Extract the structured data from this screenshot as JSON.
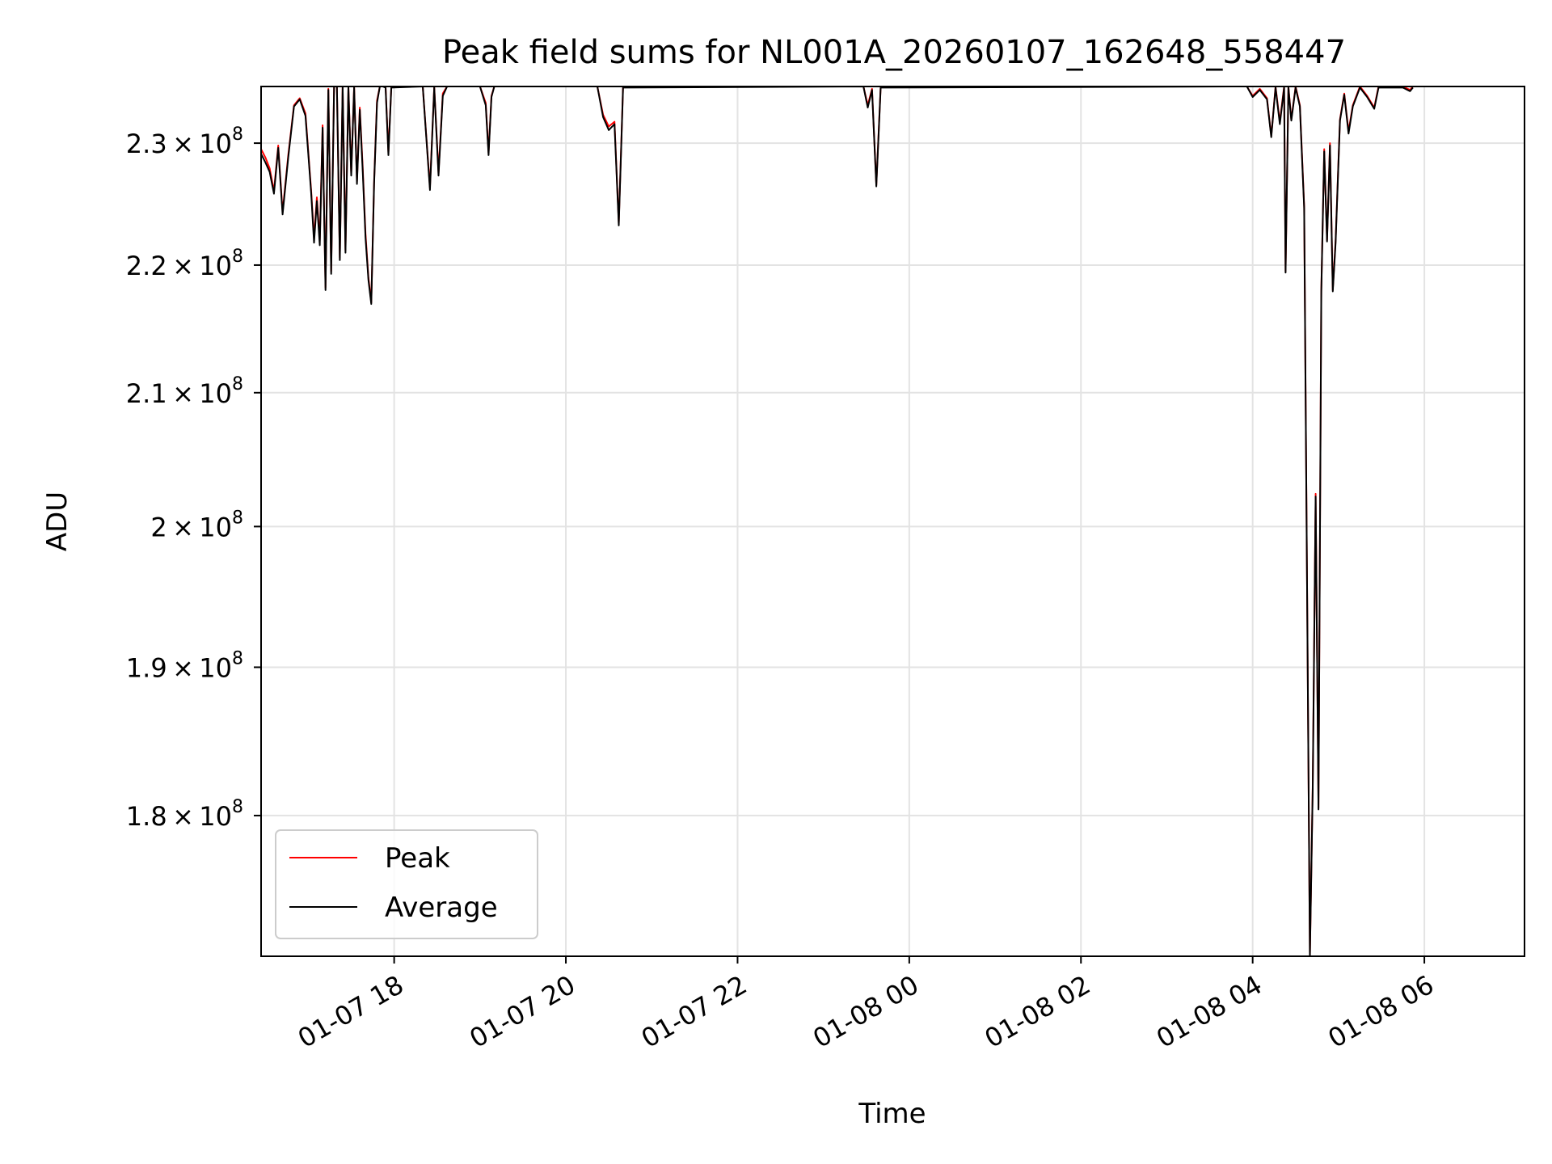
{
  "chart_data": {
    "type": "line",
    "title": "Peak field sums for NL001A_20260107_162648_558447",
    "xlabel": "Time",
    "ylabel": "ADU",
    "y_scale": "log",
    "xlim": [
      "2026-01-07 16:27",
      "2026-01-08 07:10"
    ],
    "ylim": [
      171000000,
      234800000
    ],
    "grid": true,
    "legend_position": "lower-left",
    "x_ticks": [
      {
        "t": "2026-01-07 18:00",
        "label": "01-07 18"
      },
      {
        "t": "2026-01-07 20:00",
        "label": "01-07 20"
      },
      {
        "t": "2026-01-07 22:00",
        "label": "01-07 22"
      },
      {
        "t": "2026-01-08 00:00",
        "label": "01-08 00"
      },
      {
        "t": "2026-01-08 02:00",
        "label": "01-08 02"
      },
      {
        "t": "2026-01-08 04:00",
        "label": "01-08 04"
      },
      {
        "t": "2026-01-08 06:00",
        "label": "01-08 06"
      }
    ],
    "y_ticks": [
      {
        "value": 180000000,
        "mantissa": "1.8",
        "exp": "8"
      },
      {
        "value": 190000000,
        "mantissa": "1.9",
        "exp": "8"
      },
      {
        "value": 200000000,
        "mantissa": "2",
        "exp": "8"
      },
      {
        "value": 210000000,
        "mantissa": "2.1",
        "exp": "8"
      },
      {
        "value": 220000000,
        "mantissa": "2.2",
        "exp": "8"
      },
      {
        "value": 230000000,
        "mantissa": "2.3",
        "exp": "8"
      }
    ],
    "series": [
      {
        "name": "Peak",
        "color": "#ff0000",
        "points": [
          [
            "2026-01-07 16:27",
            229500000
          ],
          [
            "2026-01-07 16:30",
            228800000
          ],
          [
            "2026-01-07 16:33",
            227900000
          ],
          [
            "2026-01-07 16:36",
            226000000
          ],
          [
            "2026-01-07 16:39",
            229800000
          ],
          [
            "2026-01-07 16:42",
            224300000
          ],
          [
            "2026-01-07 16:46",
            229000000
          ],
          [
            "2026-01-07 16:50",
            233200000
          ],
          [
            "2026-01-07 16:54",
            233800000
          ],
          [
            "2026-01-07 16:58",
            232500000
          ],
          [
            "2026-01-07 17:02",
            226000000
          ],
          [
            "2026-01-07 17:04",
            222200000
          ],
          [
            "2026-01-07 17:06",
            225500000
          ],
          [
            "2026-01-07 17:08",
            222000000
          ],
          [
            "2026-01-07 17:10",
            231500000
          ],
          [
            "2026-01-07 17:12",
            218200000
          ],
          [
            "2026-01-07 17:14",
            234600000
          ],
          [
            "2026-01-07 17:16",
            219500000
          ],
          [
            "2026-01-07 17:18",
            234800000
          ],
          [
            "2026-01-07 17:20",
            234800000
          ],
          [
            "2026-01-07 17:22",
            220600000
          ],
          [
            "2026-01-07 17:24",
            234800000
          ],
          [
            "2026-01-07 17:26",
            221200000
          ],
          [
            "2026-01-07 17:28",
            234800000
          ],
          [
            "2026-01-07 17:30",
            227500000
          ],
          [
            "2026-01-07 17:32",
            234800000
          ],
          [
            "2026-01-07 17:34",
            226800000
          ],
          [
            "2026-01-07 17:36",
            233000000
          ],
          [
            "2026-01-07 17:38",
            228000000
          ],
          [
            "2026-01-07 17:40",
            222500000
          ],
          [
            "2026-01-07 17:42",
            219000000
          ],
          [
            "2026-01-07 17:44",
            217000000
          ],
          [
            "2026-01-07 17:46",
            226800000
          ],
          [
            "2026-01-07 17:48",
            233600000
          ],
          [
            "2026-01-07 17:50",
            234800000
          ],
          [
            "2026-01-07 17:52",
            234800000
          ],
          [
            "2026-01-07 17:54",
            234800000
          ],
          [
            "2026-01-07 17:56",
            229200000
          ],
          [
            "2026-01-07 17:58",
            234800000
          ],
          [
            "2026-01-07 18:20",
            234800000
          ],
          [
            "2026-01-07 18:25",
            226300000
          ],
          [
            "2026-01-07 18:28",
            234800000
          ],
          [
            "2026-01-07 18:31",
            227500000
          ],
          [
            "2026-01-07 18:34",
            234200000
          ],
          [
            "2026-01-07 18:37",
            234800000
          ],
          [
            "2026-01-07 19:00",
            234800000
          ],
          [
            "2026-01-07 19:04",
            233400000
          ],
          [
            "2026-01-07 19:06",
            229200000
          ],
          [
            "2026-01-07 19:08",
            234000000
          ],
          [
            "2026-01-07 19:10",
            234800000
          ],
          [
            "2026-01-07 20:22",
            234800000
          ],
          [
            "2026-01-07 20:26",
            232400000
          ],
          [
            "2026-01-07 20:30",
            231400000
          ],
          [
            "2026-01-07 20:34",
            231800000
          ],
          [
            "2026-01-07 20:37",
            223400000
          ],
          [
            "2026-01-07 20:40",
            234800000
          ],
          [
            "2026-01-07 23:28",
            234800000
          ],
          [
            "2026-01-07 23:31",
            233200000
          ],
          [
            "2026-01-07 23:34",
            234600000
          ],
          [
            "2026-01-07 23:37",
            226500000
          ],
          [
            "2026-01-07 23:40",
            234800000
          ],
          [
            "2026-01-08 03:56",
            234800000
          ],
          [
            "2026-01-08 04:00",
            234000000
          ],
          [
            "2026-01-08 04:05",
            234600000
          ],
          [
            "2026-01-08 04:10",
            233800000
          ],
          [
            "2026-01-08 04:13",
            230600000
          ],
          [
            "2026-01-08 04:16",
            234800000
          ],
          [
            "2026-01-08 04:19",
            231800000
          ],
          [
            "2026-01-08 04:22",
            234800000
          ],
          [
            "2026-01-08 04:23",
            219500000
          ],
          [
            "2026-01-08 04:25",
            234800000
          ],
          [
            "2026-01-08 04:27",
            232000000
          ],
          [
            "2026-01-08 04:30",
            234800000
          ],
          [
            "2026-01-08 04:33",
            233200000
          ],
          [
            "2026-01-08 04:36",
            224800000
          ],
          [
            "2026-01-08 04:40",
            171000000
          ],
          [
            "2026-01-08 04:42",
            182000000
          ],
          [
            "2026-01-08 04:44",
            202400000
          ],
          [
            "2026-01-08 04:46",
            180500000
          ],
          [
            "2026-01-08 04:48",
            218000000
          ],
          [
            "2026-01-08 04:50",
            229500000
          ],
          [
            "2026-01-08 04:52",
            222000000
          ],
          [
            "2026-01-08 04:54",
            230000000
          ],
          [
            "2026-01-08 04:56",
            218000000
          ],
          [
            "2026-01-08 04:58",
            222000000
          ],
          [
            "2026-01-08 05:01",
            232000000
          ],
          [
            "2026-01-08 05:04",
            234200000
          ],
          [
            "2026-01-08 05:07",
            231000000
          ],
          [
            "2026-01-08 05:10",
            233200000
          ],
          [
            "2026-01-08 05:15",
            234800000
          ],
          [
            "2026-01-08 05:20",
            234000000
          ],
          [
            "2026-01-08 05:25",
            233000000
          ],
          [
            "2026-01-08 05:28",
            234800000
          ],
          [
            "2026-01-08 05:45",
            234800000
          ],
          [
            "2026-01-08 05:50",
            234500000
          ],
          [
            "2026-01-08 05:52",
            234800000
          ]
        ]
      },
      {
        "name": "Average",
        "color": "#000000",
        "points": [
          [
            "2026-01-07 16:27",
            229100000
          ],
          [
            "2026-01-07 16:30",
            228400000
          ],
          [
            "2026-01-07 16:33",
            227600000
          ],
          [
            "2026-01-07 16:36",
            225800000
          ],
          [
            "2026-01-07 16:39",
            229600000
          ],
          [
            "2026-01-07 16:42",
            224100000
          ],
          [
            "2026-01-07 16:46",
            228800000
          ],
          [
            "2026-01-07 16:50",
            233100000
          ],
          [
            "2026-01-07 16:54",
            233700000
          ],
          [
            "2026-01-07 16:58",
            232300000
          ],
          [
            "2026-01-07 17:02",
            225800000
          ],
          [
            "2026-01-07 17:04",
            221800000
          ],
          [
            "2026-01-07 17:06",
            225200000
          ],
          [
            "2026-01-07 17:08",
            221600000
          ],
          [
            "2026-01-07 17:10",
            231300000
          ],
          [
            "2026-01-07 17:12",
            218000000
          ],
          [
            "2026-01-07 17:14",
            234500000
          ],
          [
            "2026-01-07 17:16",
            219300000
          ],
          [
            "2026-01-07 17:18",
            234800000
          ],
          [
            "2026-01-07 17:20",
            234800000
          ],
          [
            "2026-01-07 17:22",
            220400000
          ],
          [
            "2026-01-07 17:24",
            234800000
          ],
          [
            "2026-01-07 17:26",
            221000000
          ],
          [
            "2026-01-07 17:28",
            234700000
          ],
          [
            "2026-01-07 17:30",
            227300000
          ],
          [
            "2026-01-07 17:32",
            234700000
          ],
          [
            "2026-01-07 17:34",
            226600000
          ],
          [
            "2026-01-07 17:36",
            232800000
          ],
          [
            "2026-01-07 17:38",
            227700000
          ],
          [
            "2026-01-07 17:40",
            222200000
          ],
          [
            "2026-01-07 17:42",
            218800000
          ],
          [
            "2026-01-07 17:44",
            216900000
          ],
          [
            "2026-01-07 17:46",
            226600000
          ],
          [
            "2026-01-07 17:48",
            233400000
          ],
          [
            "2026-01-07 17:50",
            234800000
          ],
          [
            "2026-01-07 17:52",
            234800000
          ],
          [
            "2026-01-07 17:54",
            234700000
          ],
          [
            "2026-01-07 17:56",
            229000000
          ],
          [
            "2026-01-07 17:58",
            234700000
          ],
          [
            "2026-01-07 18:20",
            234800000
          ],
          [
            "2026-01-07 18:25",
            226100000
          ],
          [
            "2026-01-07 18:28",
            234700000
          ],
          [
            "2026-01-07 18:31",
            227300000
          ],
          [
            "2026-01-07 18:34",
            234000000
          ],
          [
            "2026-01-07 18:37",
            234800000
          ],
          [
            "2026-01-07 19:00",
            234800000
          ],
          [
            "2026-01-07 19:04",
            233200000
          ],
          [
            "2026-01-07 19:06",
            229000000
          ],
          [
            "2026-01-07 19:08",
            233900000
          ],
          [
            "2026-01-07 19:10",
            234800000
          ],
          [
            "2026-01-07 20:22",
            234800000
          ],
          [
            "2026-01-07 20:26",
            232200000
          ],
          [
            "2026-01-07 20:30",
            231100000
          ],
          [
            "2026-01-07 20:34",
            231600000
          ],
          [
            "2026-01-07 20:37",
            223200000
          ],
          [
            "2026-01-07 20:40",
            234700000
          ],
          [
            "2026-01-07 23:28",
            234800000
          ],
          [
            "2026-01-07 23:31",
            233000000
          ],
          [
            "2026-01-07 23:34",
            234500000
          ],
          [
            "2026-01-07 23:37",
            226400000
          ],
          [
            "2026-01-07 23:40",
            234700000
          ],
          [
            "2026-01-08 03:56",
            234800000
          ],
          [
            "2026-01-08 04:00",
            233900000
          ],
          [
            "2026-01-08 04:05",
            234500000
          ],
          [
            "2026-01-08 04:10",
            233700000
          ],
          [
            "2026-01-08 04:13",
            230500000
          ],
          [
            "2026-01-08 04:16",
            234700000
          ],
          [
            "2026-01-08 04:19",
            231600000
          ],
          [
            "2026-01-08 04:22",
            234700000
          ],
          [
            "2026-01-08 04:23",
            219400000
          ],
          [
            "2026-01-08 04:25",
            234700000
          ],
          [
            "2026-01-08 04:27",
            231900000
          ],
          [
            "2026-01-08 04:30",
            234700000
          ],
          [
            "2026-01-08 04:33",
            233100000
          ],
          [
            "2026-01-08 04:36",
            224600000
          ],
          [
            "2026-01-08 04:40",
            171000000
          ],
          [
            "2026-01-08 04:42",
            181800000
          ],
          [
            "2026-01-08 04:44",
            202200000
          ],
          [
            "2026-01-08 04:46",
            180400000
          ],
          [
            "2026-01-08 04:48",
            217900000
          ],
          [
            "2026-01-08 04:50",
            229300000
          ],
          [
            "2026-01-08 04:52",
            221900000
          ],
          [
            "2026-01-08 04:54",
            229800000
          ],
          [
            "2026-01-08 04:56",
            217900000
          ],
          [
            "2026-01-08 04:58",
            221800000
          ],
          [
            "2026-01-08 05:01",
            231900000
          ],
          [
            "2026-01-08 05:04",
            234100000
          ],
          [
            "2026-01-08 05:07",
            230800000
          ],
          [
            "2026-01-08 05:10",
            233100000
          ],
          [
            "2026-01-08 05:15",
            234700000
          ],
          [
            "2026-01-08 05:20",
            233900000
          ],
          [
            "2026-01-08 05:25",
            232900000
          ],
          [
            "2026-01-08 05:28",
            234700000
          ],
          [
            "2026-01-08 05:45",
            234700000
          ],
          [
            "2026-01-08 05:50",
            234400000
          ],
          [
            "2026-01-08 05:52",
            234700000
          ]
        ]
      }
    ]
  }
}
